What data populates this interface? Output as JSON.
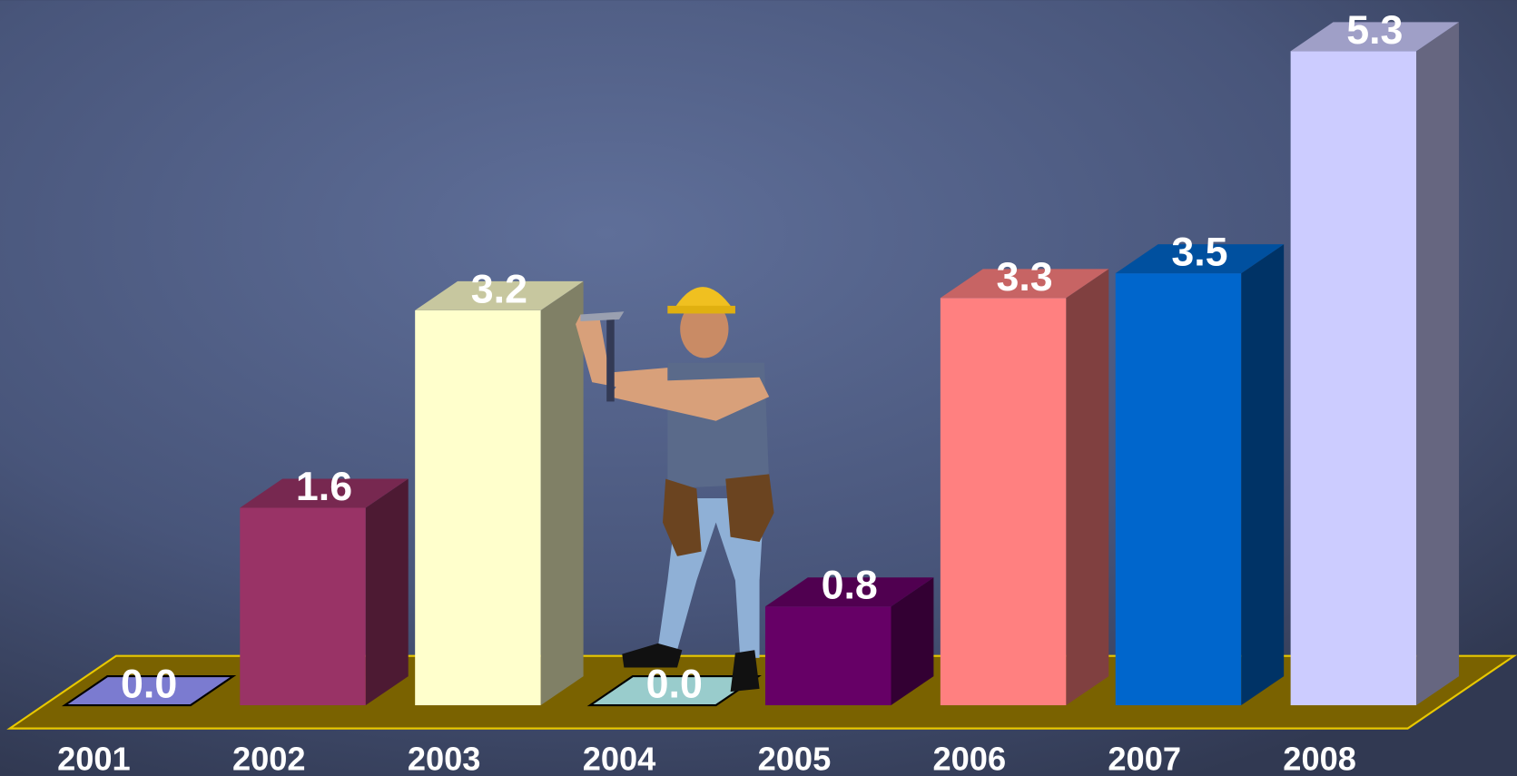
{
  "chart_data": {
    "type": "bar3d",
    "categories": [
      "2001",
      "2002",
      "2003",
      "2004",
      "2005",
      "2006",
      "2007",
      "2008"
    ],
    "values": [
      0,
      1.6,
      3.2,
      0,
      0.8,
      3.3,
      3.5,
      5.3
    ],
    "value_labels": [
      "0.0",
      "1.6",
      "3.2",
      "0.0",
      "0.8",
      "3.3",
      "3.5",
      "5.3"
    ],
    "colors": [
      "#7b7bd0",
      "#993366",
      "#ffffcc",
      "#99cccc",
      "#660066",
      "#ff8080",
      "#0066cc",
      "#ccccff"
    ]
  }
}
